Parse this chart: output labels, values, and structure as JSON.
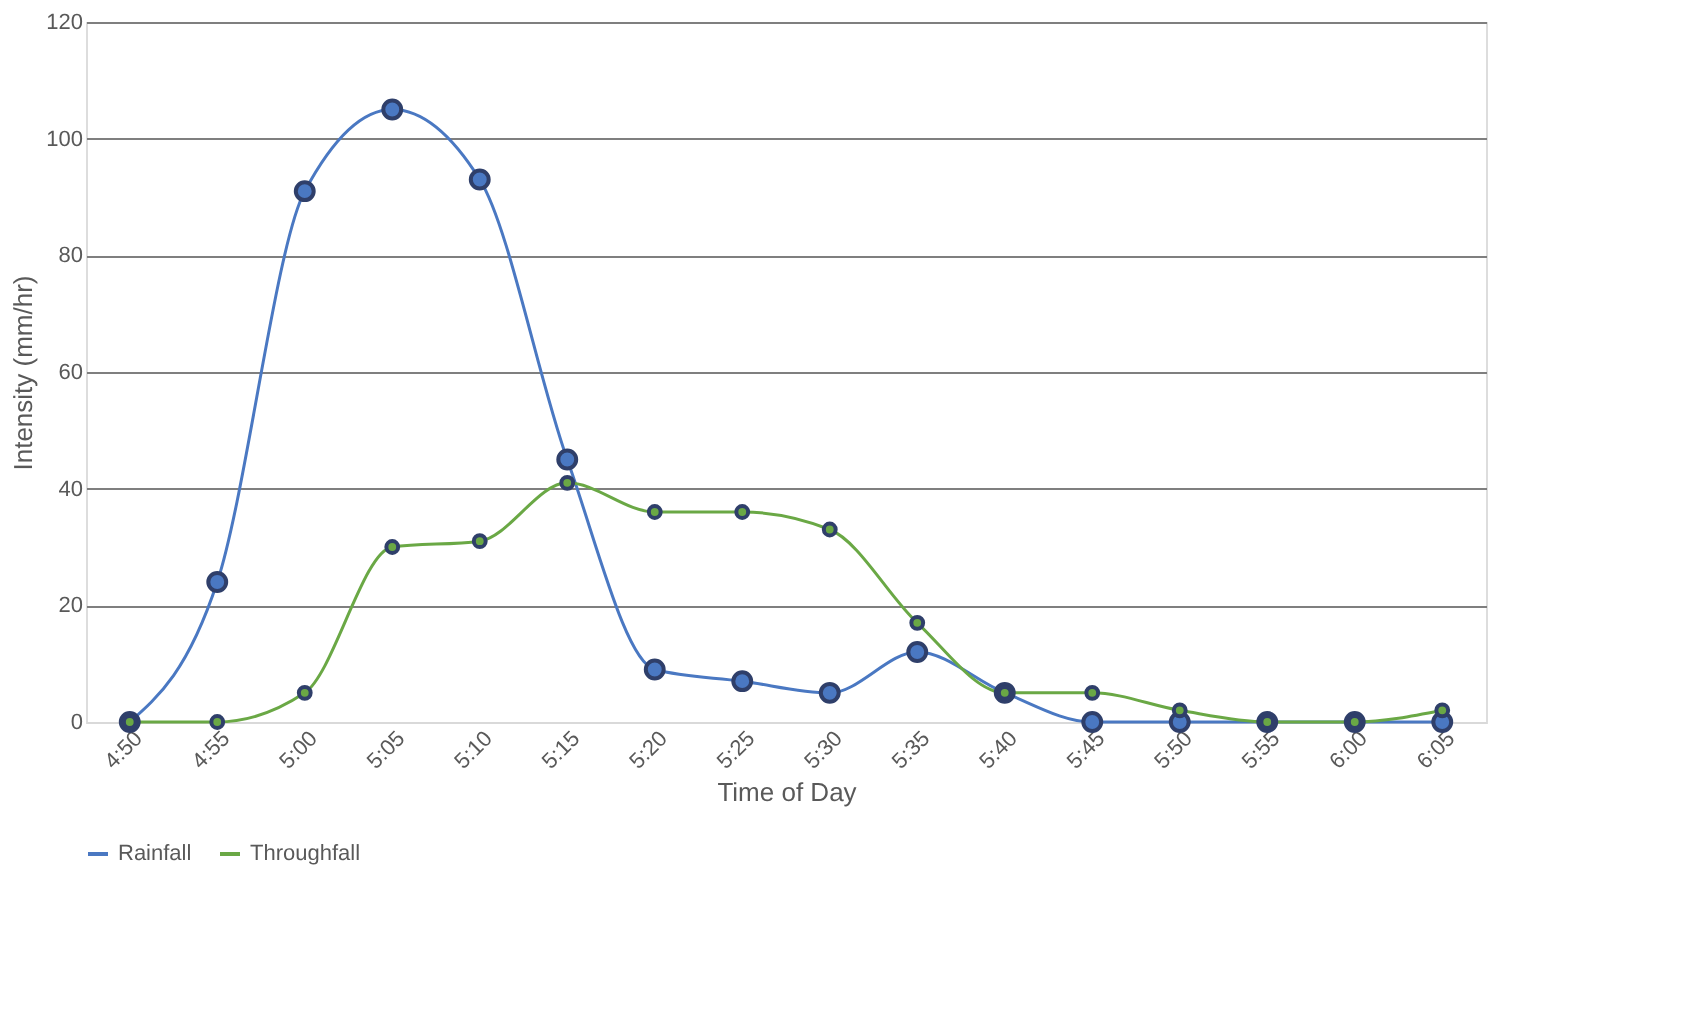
{
  "chart_data": {
    "type": "line",
    "xlabel": "Time of Day",
    "ylabel": "Intensity (mm/hr)",
    "categories": [
      "4:50",
      "4:55",
      "5:00",
      "5:05",
      "5:10",
      "5:15",
      "5:20",
      "5:25",
      "5:30",
      "5:35",
      "5:40",
      "5:45",
      "5:50",
      "5:55",
      "6:00",
      "6:05"
    ],
    "series": [
      {
        "name": "Rainfall",
        "color": "#4a78c2",
        "values": [
          0,
          24,
          91,
          105,
          93,
          45,
          9,
          7,
          5,
          12,
          5,
          0,
          0,
          0,
          0,
          0
        ]
      },
      {
        "name": "Throughfall",
        "color": "#6aa845",
        "values": [
          0,
          0,
          5,
          30,
          31,
          41,
          36,
          36,
          33,
          17,
          5,
          5,
          2,
          0,
          0,
          2
        ]
      }
    ],
    "ylim": [
      0,
      120
    ],
    "yticks": [
      0,
      20,
      40,
      60,
      80,
      100,
      120
    ],
    "grid": "y",
    "legend": "bottom",
    "marker": "circle",
    "line_style": "solid"
  }
}
